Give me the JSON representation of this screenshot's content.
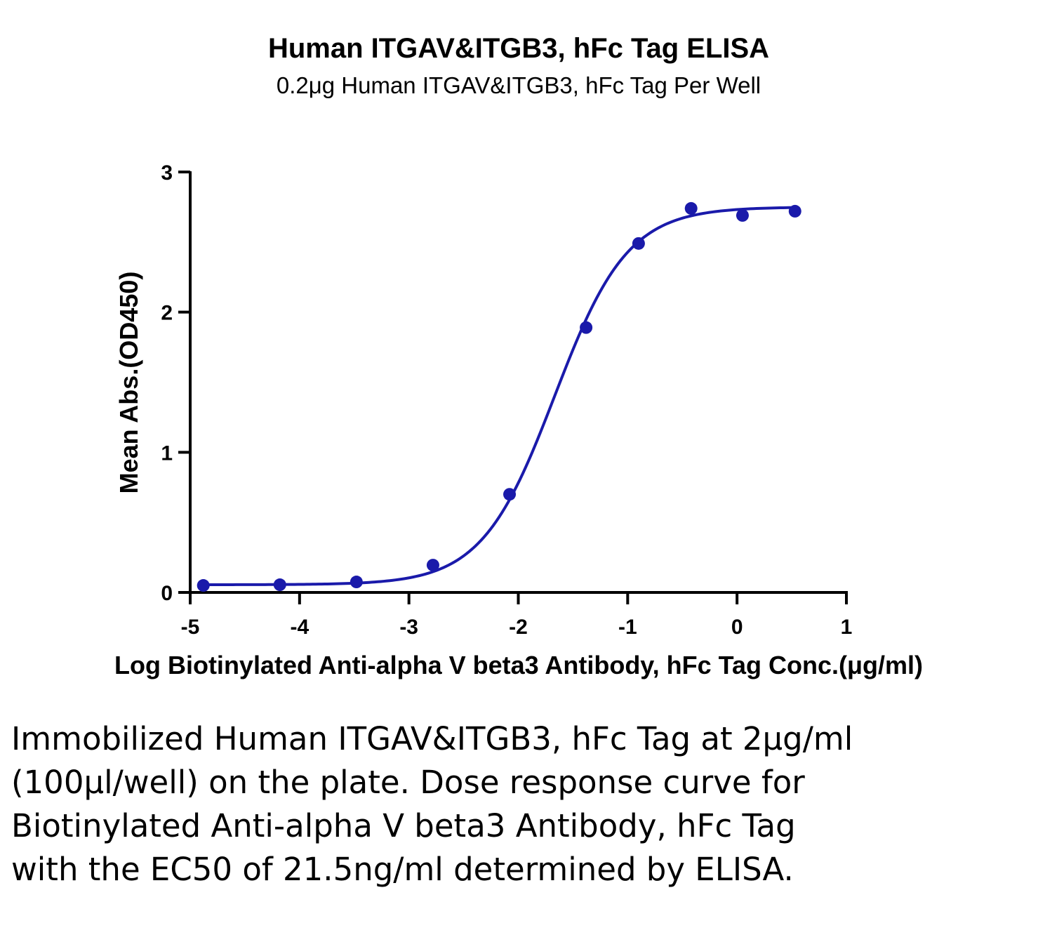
{
  "chart_data": {
    "type": "scatter",
    "title": "Human ITGAV&ITGB3, hFc Tag ELISA",
    "subtitle": "0.2μg Human ITGAV&ITGB3, hFc Tag Per Well",
    "xlabel": "Log Biotinylated Anti-alpha V beta3 Antibody, hFc Tag Conc.(μg/ml)",
    "ylabel": "Mean Abs.(OD450)",
    "xlim": [
      -5,
      1
    ],
    "ylim": [
      0,
      3
    ],
    "xticks": [
      "-5",
      "-4",
      "-3",
      "-2",
      "-1",
      "0",
      "1"
    ],
    "yticks": [
      "0",
      "1",
      "2",
      "3"
    ],
    "grid": false,
    "colors": {
      "series": "#1a1aaa"
    },
    "points": [
      {
        "x": -4.88,
        "y": 0.05
      },
      {
        "x": -4.18,
        "y": 0.055
      },
      {
        "x": -3.48,
        "y": 0.075
      },
      {
        "x": -2.78,
        "y": 0.195
      },
      {
        "x": -2.08,
        "y": 0.7
      },
      {
        "x": -1.38,
        "y": 1.89
      },
      {
        "x": -0.9,
        "y": 2.49
      },
      {
        "x": -0.42,
        "y": 2.74
      },
      {
        "x": 0.05,
        "y": 2.69
      },
      {
        "x": 0.53,
        "y": 2.72
      }
    ],
    "fit": {
      "bottom": 0.055,
      "top": 2.75,
      "log_ec50": -1.667,
      "hill_slope": 1.3
    }
  },
  "caption": "Immobilized Human ITGAV&ITGB3, hFc Tag at 2μg/ml (100μl/well) on the plate. Dose response curve for Biotinylated Anti-alpha V beta3 Antibody, hFc Tag with the EC50 of 21.5ng/ml determined by ELISA."
}
